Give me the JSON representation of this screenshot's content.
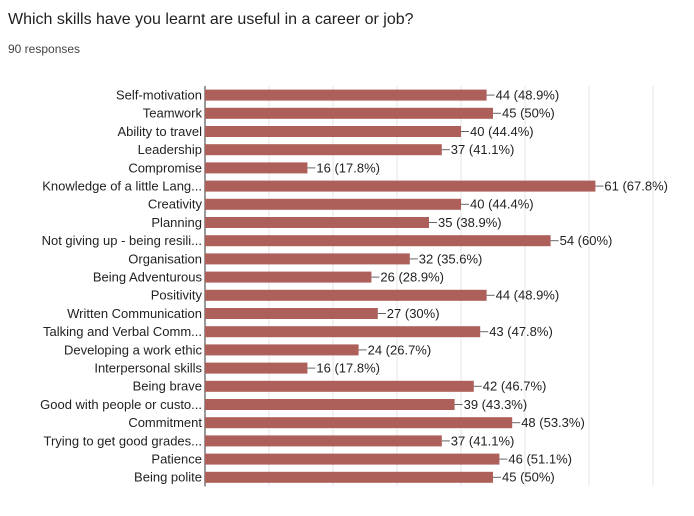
{
  "chart_data": {
    "type": "barh",
    "title": "Which skills have you learnt are useful in a career or job?",
    "subtitle": "90 responses",
    "categories": [
      "Self-motivation",
      "Teamwork",
      "Ability to travel",
      "Leadership",
      "Compromise",
      "Knowledge of a little Lang...",
      "Creativity",
      "Planning",
      "Not giving up - being resili...",
      "Organisation",
      "Being Adventurous",
      "Positivity",
      "Written Communication",
      "Talking and Verbal Comm...",
      "Developing a work ethic",
      "Interpersonal skills",
      "Being brave",
      "Good with people or custo...",
      "Commitment",
      "Trying to get good grades...",
      "Patience",
      "Being polite"
    ],
    "values": [
      44,
      45,
      40,
      37,
      16,
      61,
      40,
      35,
      54,
      32,
      26,
      44,
      27,
      43,
      24,
      16,
      42,
      39,
      48,
      37,
      46,
      45
    ],
    "value_labels": [
      "44 (48.9%)",
      "45 (50%)",
      "40 (44.4%)",
      "37 (41.1%)",
      "16 (17.8%)",
      "61 (67.8%)",
      "40 (44.4%)",
      "35 (38.9%)",
      "54 (60%)",
      "32 (35.6%)",
      "26 (28.9%)",
      "44 (48.9%)",
      "27 (30%)",
      "43 (47.8%)",
      "24 (26.7%)",
      "16 (17.8%)",
      "42 (46.7%)",
      "39 (43.3%)",
      "48 (53.3%)",
      "37 (41.1%)",
      "46 (51.1%)",
      "45 (50%)"
    ],
    "color": "#ad5f5a",
    "xlim": [
      0,
      70
    ],
    "xticks": [
      0,
      10,
      20,
      30,
      40,
      50,
      60,
      70
    ],
    "grid": true
  }
}
